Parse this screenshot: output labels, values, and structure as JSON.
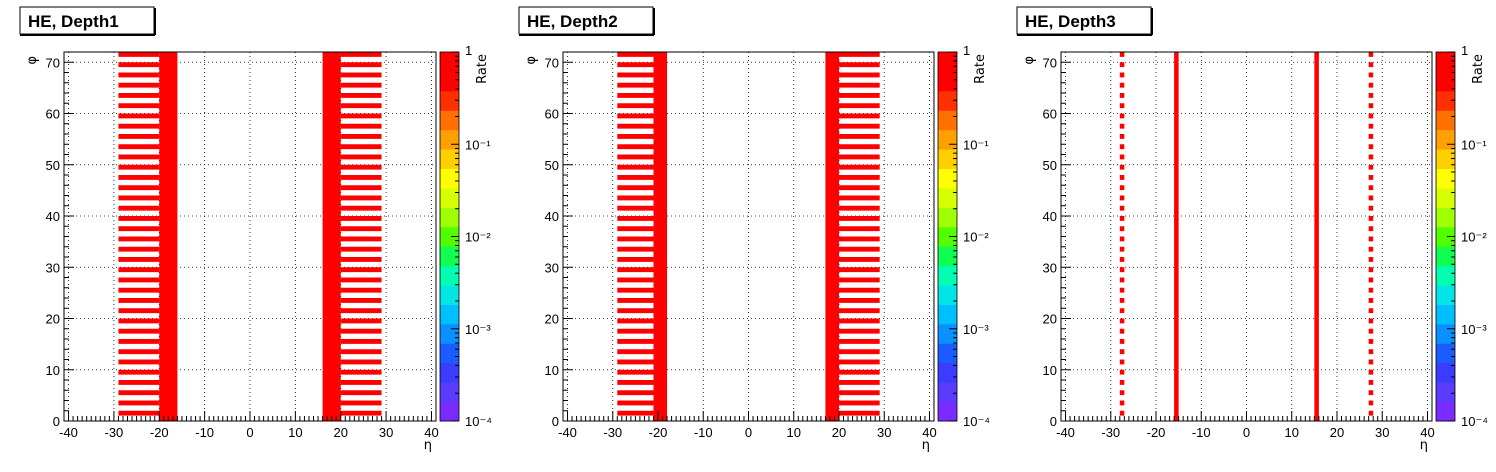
{
  "chart_data": [
    {
      "type": "heatmap",
      "title": "HE, Depth1",
      "xlabel": "η",
      "ylabel": "φ",
      "zlabel": "Rate",
      "xlim": [
        -41,
        41
      ],
      "ylim": [
        0,
        72
      ],
      "zlim": [
        0.0001,
        1
      ],
      "z_scale": "log",
      "grid": true,
      "x_ticks": [
        -40,
        -30,
        -20,
        -10,
        0,
        10,
        20,
        30,
        40
      ],
      "y_ticks": [
        0,
        10,
        20,
        30,
        40,
        50,
        60,
        70
      ],
      "z_ticks": [
        "10⁻⁴",
        "10⁻³",
        "10⁻²",
        "10⁻¹",
        "1"
      ],
      "color": "#ff0000",
      "solid_strips": [
        [
          -20,
          -16
        ],
        [
          16,
          20
        ]
      ],
      "striped_strips": [
        [
          -29,
          -20
        ],
        [
          20,
          29
        ]
      ],
      "stripe_phi_step": 2,
      "filled_value": 1
    },
    {
      "type": "heatmap",
      "title": "HE, Depth2",
      "xlabel": "η",
      "ylabel": "φ",
      "zlabel": "Rate",
      "xlim": [
        -41,
        41
      ],
      "ylim": [
        0,
        72
      ],
      "zlim": [
        0.0001,
        1
      ],
      "z_scale": "log",
      "grid": true,
      "x_ticks": [
        -40,
        -30,
        -20,
        -10,
        0,
        10,
        20,
        30,
        40
      ],
      "y_ticks": [
        0,
        10,
        20,
        30,
        40,
        50,
        60,
        70
      ],
      "z_ticks": [
        "10⁻⁴",
        "10⁻³",
        "10⁻²",
        "10⁻¹",
        "1"
      ],
      "color": "#ff0000",
      "solid_strips": [
        [
          -21,
          -18
        ],
        [
          17,
          20
        ]
      ],
      "striped_strips": [
        [
          -29,
          -21
        ],
        [
          20,
          29
        ]
      ],
      "stripe_phi_step": 2,
      "filled_value": 1
    },
    {
      "type": "heatmap",
      "title": "HE, Depth3",
      "xlabel": "η",
      "ylabel": "φ",
      "zlabel": "Rate",
      "xlim": [
        -41,
        41
      ],
      "ylim": [
        0,
        72
      ],
      "zlim": [
        0.0001,
        1
      ],
      "z_scale": "log",
      "grid": true,
      "x_ticks": [
        -40,
        -30,
        -20,
        -10,
        0,
        10,
        20,
        30,
        40
      ],
      "y_ticks": [
        0,
        10,
        20,
        30,
        40,
        50,
        60,
        70
      ],
      "z_ticks": [
        "10⁻⁴",
        "10⁻³",
        "10⁻²",
        "10⁻¹",
        "1"
      ],
      "color": "#ff0000",
      "solid_strips": [
        [
          -16,
          -15
        ],
        [
          15,
          16
        ]
      ],
      "striped_strips": [
        [
          -28,
          -27
        ],
        [
          27,
          28
        ]
      ],
      "stripe_phi_step": 2,
      "filled_value": 1
    }
  ]
}
